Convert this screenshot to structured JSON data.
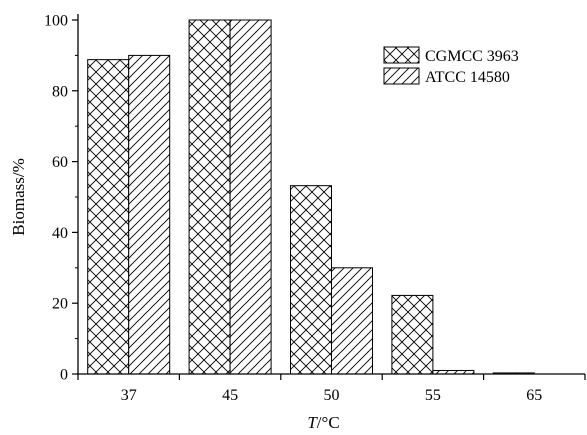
{
  "chart_data": {
    "type": "bar",
    "categories": [
      "37",
      "45",
      "50",
      "55",
      "65"
    ],
    "series": [
      {
        "name": "CGMCC 3963",
        "values": [
          88.8,
          100,
          53.2,
          22.2,
          0.3
        ]
      },
      {
        "name": "ATCC 14580",
        "values": [
          90.0,
          100,
          30.0,
          1.0,
          0.0
        ]
      }
    ],
    "title": "",
    "xlabel_italic": "T",
    "xlabel_rest": "/°C",
    "ylabel": "Biomass/%",
    "ylim": [
      0,
      100
    ],
    "yticks": [
      "0",
      "20",
      "40",
      "60",
      "80",
      "100"
    ],
    "grid": false,
    "legend_position": "top-right"
  }
}
